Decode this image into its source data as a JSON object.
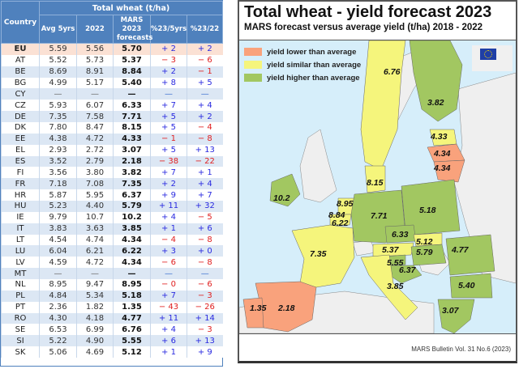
{
  "table": {
    "group_header": "Total wheat (t/ha)",
    "headers": [
      "Country",
      "Avg 5yrs",
      "2022",
      "MARS 2023 forecasts",
      "%23/5yrs",
      "%23/22"
    ],
    "rows": [
      {
        "country": "EU",
        "avg5": "5.59",
        "y2022": "5.56",
        "mars": "5.70",
        "p5": "+ 2",
        "p22": "+ 2"
      },
      {
        "country": "AT",
        "avg5": "5.52",
        "y2022": "5.73",
        "mars": "5.37",
        "p5": "− 3",
        "p22": "− 6"
      },
      {
        "country": "BE",
        "avg5": "8.69",
        "y2022": "8.91",
        "mars": "8.84",
        "p5": "+ 2",
        "p22": "− 1"
      },
      {
        "country": "BG",
        "avg5": "4.99",
        "y2022": "5.17",
        "mars": "5.40",
        "p5": "+ 8",
        "p22": "+ 5"
      },
      {
        "country": "CY",
        "avg5": "—",
        "y2022": "—",
        "mars": "—",
        "p5": "—",
        "p22": "—"
      },
      {
        "country": "CZ",
        "avg5": "5.93",
        "y2022": "6.07",
        "mars": "6.33",
        "p5": "+ 7",
        "p22": "+ 4"
      },
      {
        "country": "DE",
        "avg5": "7.35",
        "y2022": "7.58",
        "mars": "7.71",
        "p5": "+ 5",
        "p22": "+ 2"
      },
      {
        "country": "DK",
        "avg5": "7.80",
        "y2022": "8.47",
        "mars": "8.15",
        "p5": "+ 5",
        "p22": "− 4"
      },
      {
        "country": "EE",
        "avg5": "4.38",
        "y2022": "4.72",
        "mars": "4.33",
        "p5": "− 1",
        "p22": "− 8"
      },
      {
        "country": "EL",
        "avg5": "2.93",
        "y2022": "2.72",
        "mars": "3.07",
        "p5": "+ 5",
        "p22": "+ 13"
      },
      {
        "country": "ES",
        "avg5": "3.52",
        "y2022": "2.79",
        "mars": "2.18",
        "p5": "− 38",
        "p22": "− 22"
      },
      {
        "country": "FI",
        "avg5": "3.56",
        "y2022": "3.80",
        "mars": "3.82",
        "p5": "+ 7",
        "p22": "+ 1"
      },
      {
        "country": "FR",
        "avg5": "7.18",
        "y2022": "7.08",
        "mars": "7.35",
        "p5": "+ 2",
        "p22": "+ 4"
      },
      {
        "country": "HR",
        "avg5": "5.87",
        "y2022": "5.95",
        "mars": "6.37",
        "p5": "+ 9",
        "p22": "+ 7"
      },
      {
        "country": "HU",
        "avg5": "5.23",
        "y2022": "4.40",
        "mars": "5.79",
        "p5": "+ 11",
        "p22": "+ 32"
      },
      {
        "country": "IE",
        "avg5": "9.79",
        "y2022": "10.7",
        "mars": "10.2",
        "p5": "+ 4",
        "p22": "− 5"
      },
      {
        "country": "IT",
        "avg5": "3.83",
        "y2022": "3.63",
        "mars": "3.85",
        "p5": "+ 1",
        "p22": "+ 6"
      },
      {
        "country": "LT",
        "avg5": "4.54",
        "y2022": "4.74",
        "mars": "4.34",
        "p5": "− 4",
        "p22": "− 8"
      },
      {
        "country": "LU",
        "avg5": "6.04",
        "y2022": "6.21",
        "mars": "6.22",
        "p5": "+ 3",
        "p22": "+ 0"
      },
      {
        "country": "LV",
        "avg5": "4.59",
        "y2022": "4.72",
        "mars": "4.34",
        "p5": "− 6",
        "p22": "− 8"
      },
      {
        "country": "MT",
        "avg5": "—",
        "y2022": "—",
        "mars": "—",
        "p5": "—",
        "p22": "—"
      },
      {
        "country": "NL",
        "avg5": "8.95",
        "y2022": "9.47",
        "mars": "8.95",
        "p5": "− 0",
        "p22": "− 6"
      },
      {
        "country": "PL",
        "avg5": "4.84",
        "y2022": "5.34",
        "mars": "5.18",
        "p5": "+ 7",
        "p22": "− 3"
      },
      {
        "country": "PT",
        "avg5": "2.36",
        "y2022": "1.82",
        "mars": "1.35",
        "p5": "− 43",
        "p22": "− 26"
      },
      {
        "country": "RO",
        "avg5": "4.30",
        "y2022": "4.18",
        "mars": "4.77",
        "p5": "+ 11",
        "p22": "+ 14"
      },
      {
        "country": "SE",
        "avg5": "6.53",
        "y2022": "6.99",
        "mars": "6.76",
        "p5": "+ 4",
        "p22": "− 3"
      },
      {
        "country": "SI",
        "avg5": "5.22",
        "y2022": "4.90",
        "mars": "5.55",
        "p5": "+ 6",
        "p22": "+ 13"
      },
      {
        "country": "SK",
        "avg5": "5.06",
        "y2022": "4.69",
        "mars": "5.12",
        "p5": "+ 1",
        "p22": "+ 9"
      }
    ]
  },
  "map": {
    "title": "Total wheat - yield forecast 2023",
    "subtitle": "MARS forecast versus average yield (t/ha) 2018 - 2022",
    "footer": "MARS Bulletin Vol. 31 No.6 (2023)",
    "legend": [
      {
        "label": "yield lower than average",
        "color": "#f9a27c"
      },
      {
        "label": "yield similar than average",
        "color": "#f5f57c"
      },
      {
        "label": "yield higher than average",
        "color": "#a2c761"
      }
    ],
    "colors": {
      "sea": "#d6eefa",
      "land_other": "#efefef",
      "lower": "#f9a27c",
      "similar": "#f5f57c",
      "higher": "#a2c761"
    }
  },
  "chart_data": {
    "type": "table",
    "title": "Total wheat - yield forecast 2023",
    "subtitle": "MARS forecast versus average yield (t/ha) 2018 - 2022",
    "map_values": [
      {
        "country": "SE",
        "value": 6.76,
        "class": "similar"
      },
      {
        "country": "FI",
        "value": 3.82,
        "class": "higher"
      },
      {
        "country": "EE",
        "value": 4.33,
        "class": "similar"
      },
      {
        "country": "LV",
        "value": 4.34,
        "class": "lower"
      },
      {
        "country": "LT",
        "value": 4.34,
        "class": "lower"
      },
      {
        "country": "IE",
        "value": 10.2,
        "class": "higher"
      },
      {
        "country": "DK",
        "value": 8.15,
        "class": "similar"
      },
      {
        "country": "NL",
        "value": 8.95,
        "class": "similar"
      },
      {
        "country": "BE",
        "value": 8.84,
        "class": "similar"
      },
      {
        "country": "LU",
        "value": 6.22,
        "class": "similar"
      },
      {
        "country": "DE",
        "value": 7.71,
        "class": "higher"
      },
      {
        "country": "PL",
        "value": 5.18,
        "class": "higher"
      },
      {
        "country": "CZ",
        "value": 6.33,
        "class": "higher"
      },
      {
        "country": "SK",
        "value": 5.12,
        "class": "similar"
      },
      {
        "country": "AT",
        "value": 5.37,
        "class": "similar"
      },
      {
        "country": "HU",
        "value": 5.79,
        "class": "higher"
      },
      {
        "country": "SI",
        "value": 5.55,
        "class": "higher"
      },
      {
        "country": "HR",
        "value": 6.37,
        "class": "higher"
      },
      {
        "country": "RO",
        "value": 4.77,
        "class": "higher"
      },
      {
        "country": "BG",
        "value": 5.4,
        "class": "higher"
      },
      {
        "country": "FR",
        "value": 7.35,
        "class": "similar"
      },
      {
        "country": "IT",
        "value": 3.85,
        "class": "similar"
      },
      {
        "country": "EL",
        "value": 3.07,
        "class": "higher"
      },
      {
        "country": "ES",
        "value": 2.18,
        "class": "lower"
      },
      {
        "country": "PT",
        "value": 1.35,
        "class": "lower"
      }
    ]
  }
}
